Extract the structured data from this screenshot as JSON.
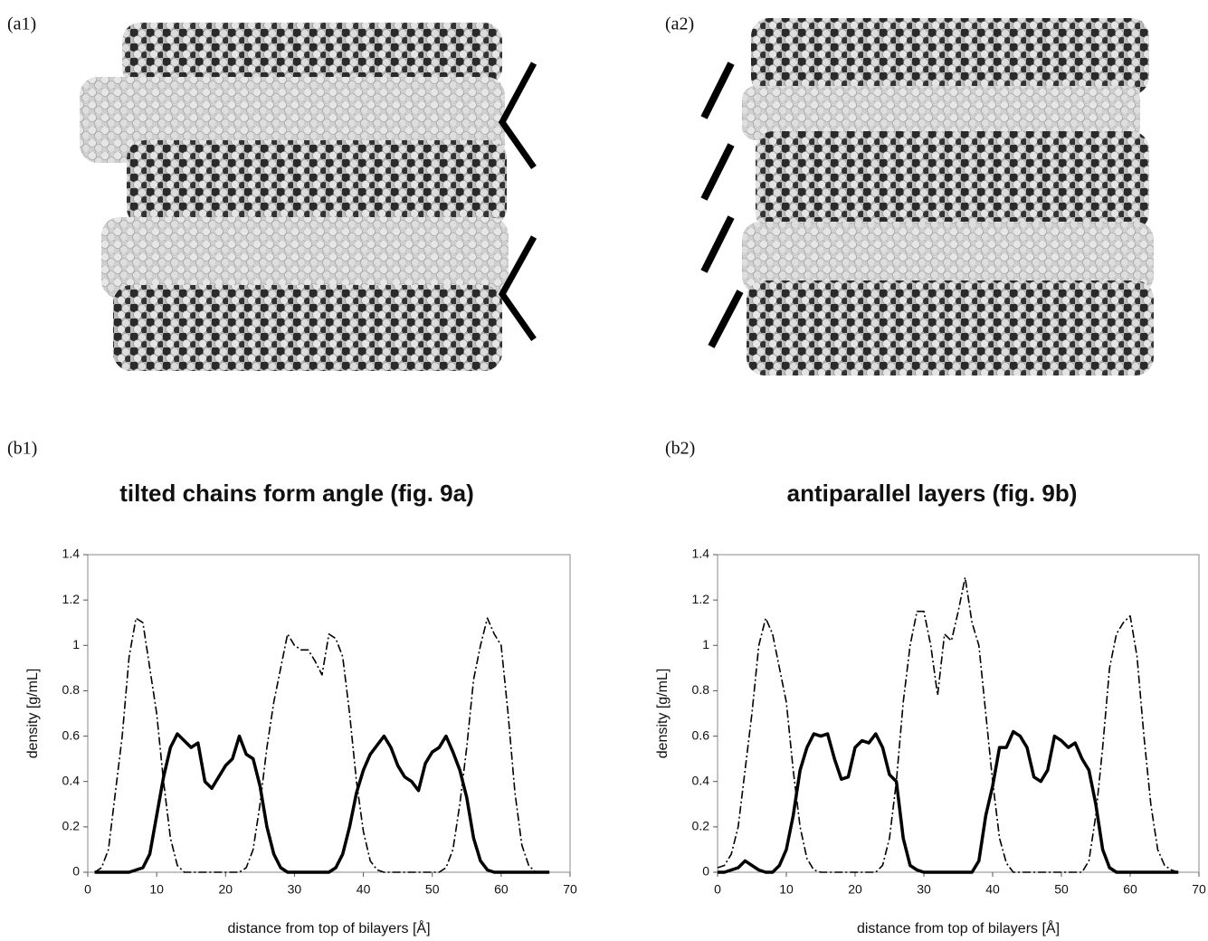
{
  "panel_labels": [
    "(a1)",
    "(a2)",
    "(b1)",
    "(b2)"
  ],
  "chart_data": [
    {
      "type": "line",
      "title": "tilted chains form angle (fig. 9a)",
      "x_label": "distance from top of bilayers [Å]",
      "y_label": "density [g/mL]",
      "x": [
        1,
        2,
        3,
        4,
        5,
        6,
        7,
        8,
        9,
        10,
        11,
        12,
        13,
        14,
        15,
        16,
        17,
        18,
        19,
        20,
        21,
        22,
        23,
        24,
        25,
        26,
        27,
        28,
        29,
        30,
        31,
        32,
        33,
        34,
        35,
        36,
        37,
        38,
        39,
        40,
        41,
        42,
        43,
        44,
        45,
        46,
        47,
        48,
        49,
        50,
        51,
        52,
        53,
        54,
        55,
        56,
        57,
        58,
        59,
        60,
        61,
        62,
        63,
        64,
        65,
        66,
        67
      ],
      "series": [
        {
          "color": "#000000",
          "style": "dashdot",
          "values": [
            0,
            0.02,
            0.1,
            0.35,
            0.6,
            0.95,
            1.12,
            1.1,
            0.9,
            0.7,
            0.4,
            0.15,
            0.03,
            0,
            0,
            0,
            0,
            0,
            0,
            0,
            0,
            0,
            0.02,
            0.1,
            0.3,
            0.55,
            0.75,
            0.9,
            1.05,
            1.0,
            0.98,
            0.98,
            0.93,
            0.87,
            1.05,
            1.03,
            0.95,
            0.7,
            0.4,
            0.18,
            0.05,
            0.01,
            0,
            0,
            0,
            0,
            0,
            0,
            0,
            0,
            0,
            0.02,
            0.1,
            0.3,
            0.55,
            0.85,
            1.0,
            1.12,
            1.05,
            1.0,
            0.7,
            0.35,
            0.12,
            0.03,
            0,
            0,
            0
          ]
        },
        {
          "color": "#000000",
          "style": "solid",
          "values": [
            0,
            0,
            0,
            0,
            0,
            0,
            0.01,
            0.02,
            0.08,
            0.25,
            0.42,
            0.55,
            0.61,
            0.58,
            0.55,
            0.57,
            0.4,
            0.37,
            0.42,
            0.47,
            0.5,
            0.6,
            0.52,
            0.5,
            0.38,
            0.2,
            0.08,
            0.02,
            0,
            0,
            0,
            0,
            0,
            0,
            0,
            0.02,
            0.08,
            0.2,
            0.35,
            0.45,
            0.52,
            0.56,
            0.6,
            0.55,
            0.47,
            0.42,
            0.4,
            0.36,
            0.48,
            0.53,
            0.55,
            0.6,
            0.53,
            0.45,
            0.33,
            0.15,
            0.05,
            0.01,
            0,
            0,
            0,
            0,
            0,
            0,
            0,
            0,
            0
          ]
        }
      ],
      "xlim": [
        0,
        70
      ],
      "xticks": [
        0,
        10,
        20,
        30,
        40,
        50,
        60,
        70
      ],
      "ylim": [
        0,
        1.4
      ],
      "yticks": [
        0,
        0.2,
        0.4,
        0.6,
        0.8,
        1,
        1.2,
        1.4
      ]
    },
    {
      "type": "line",
      "title": "antiparallel layers (fig. 9b)",
      "x_label": "distance from top of bilayers [Å]",
      "y_label": "density [g/mL]",
      "x": [
        0,
        1,
        2,
        3,
        4,
        5,
        6,
        7,
        8,
        9,
        10,
        11,
        12,
        13,
        14,
        15,
        16,
        17,
        18,
        19,
        20,
        21,
        22,
        23,
        24,
        25,
        26,
        27,
        28,
        29,
        30,
        31,
        32,
        33,
        34,
        35,
        36,
        37,
        38,
        39,
        40,
        41,
        42,
        43,
        44,
        45,
        46,
        47,
        48,
        49,
        50,
        51,
        52,
        53,
        54,
        55,
        56,
        57,
        58,
        59,
        60,
        61,
        62,
        63,
        64,
        65,
        66,
        67
      ],
      "series": [
        {
          "color": "#000000",
          "style": "dashdot",
          "values": [
            0.02,
            0.03,
            0.08,
            0.2,
            0.45,
            0.7,
            1.0,
            1.12,
            1.05,
            0.9,
            0.75,
            0.45,
            0.2,
            0.06,
            0.01,
            0,
            0,
            0,
            0,
            0,
            0,
            0,
            0,
            0,
            0.03,
            0.15,
            0.4,
            0.75,
            1.0,
            1.15,
            1.15,
            1.0,
            0.78,
            1.05,
            1.02,
            1.15,
            1.3,
            1.1,
            1.0,
            0.7,
            0.4,
            0.15,
            0.04,
            0,
            0,
            0,
            0,
            0,
            0,
            0,
            0,
            0,
            0,
            0,
            0.05,
            0.25,
            0.55,
            0.9,
            1.05,
            1.1,
            1.13,
            0.95,
            0.6,
            0.3,
            0.1,
            0.03,
            0.01,
            0
          ]
        },
        {
          "color": "#000000",
          "style": "solid",
          "values": [
            0,
            0,
            0.01,
            0.02,
            0.05,
            0.03,
            0.01,
            0,
            0,
            0.03,
            0.1,
            0.25,
            0.45,
            0.55,
            0.61,
            0.6,
            0.61,
            0.5,
            0.41,
            0.42,
            0.55,
            0.58,
            0.57,
            0.61,
            0.55,
            0.43,
            0.4,
            0.15,
            0.03,
            0.01,
            0,
            0,
            0,
            0,
            0,
            0,
            0,
            0,
            0.05,
            0.25,
            0.38,
            0.55,
            0.55,
            0.62,
            0.6,
            0.55,
            0.42,
            0.4,
            0.45,
            0.6,
            0.58,
            0.55,
            0.57,
            0.5,
            0.45,
            0.3,
            0.1,
            0.02,
            0,
            0,
            0,
            0,
            0,
            0,
            0,
            0,
            0,
            0
          ]
        }
      ],
      "xlim": [
        0,
        70
      ],
      "xticks": [
        0,
        10,
        20,
        30,
        40,
        50,
        60,
        70
      ],
      "ylim": [
        0,
        1.4
      ],
      "yticks": [
        0,
        0.2,
        0.4,
        0.6,
        0.8,
        1,
        1.2,
        1.4
      ]
    }
  ]
}
